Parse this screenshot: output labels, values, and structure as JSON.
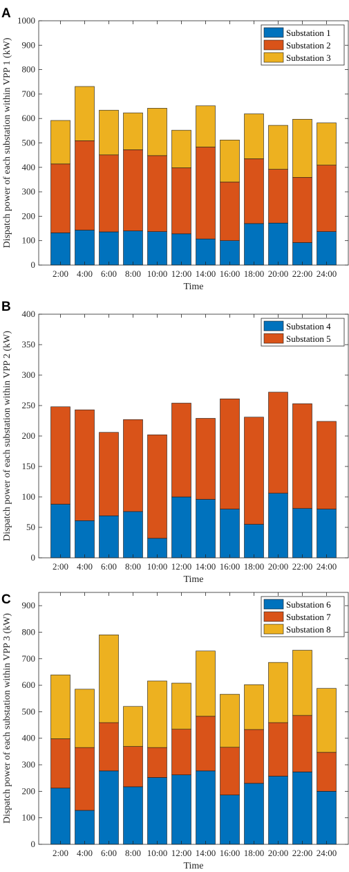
{
  "chart_data": [
    {
      "type": "bar",
      "stacked": true,
      "panel_label": "A",
      "categories": [
        "2:00",
        "4:00",
        "6:00",
        "8:00",
        "10:00",
        "12:00",
        "14:00",
        "16:00",
        "18:00",
        "20:00",
        "22:00",
        "24:00"
      ],
      "series": [
        {
          "name": "Substation 1",
          "color": "#0072BD",
          "values": [
            132,
            143,
            136,
            140,
            137,
            128,
            107,
            100,
            170,
            172,
            92,
            137
          ]
        },
        {
          "name": "Substation 2",
          "color": "#D95319",
          "values": [
            282,
            366,
            315,
            332,
            311,
            270,
            376,
            240,
            265,
            220,
            267,
            272
          ]
        },
        {
          "name": "Substation 3",
          "color": "#EDB120",
          "values": [
            178,
            222,
            183,
            151,
            194,
            154,
            169,
            172,
            184,
            180,
            238,
            173
          ]
        }
      ],
      "xlabel": "Time",
      "ylabel": "Dispatch power of each substation within VPP 1 (kW)",
      "ylim": [
        0,
        1000
      ],
      "yticks": [
        0,
        100,
        200,
        300,
        400,
        500,
        600,
        700,
        800,
        900,
        1000
      ],
      "legend_position": "top-right",
      "grid": false
    },
    {
      "type": "bar",
      "stacked": true,
      "panel_label": "B",
      "categories": [
        "2:00",
        "4:00",
        "6:00",
        "8:00",
        "10:00",
        "12:00",
        "14:00",
        "16:00",
        "18:00",
        "20:00",
        "22:00",
        "24:00"
      ],
      "series": [
        {
          "name": "Substation 4",
          "color": "#0072BD",
          "values": [
            88,
            61,
            69,
            76,
            32,
            100,
            96,
            80,
            55,
            106,
            81,
            80
          ]
        },
        {
          "name": "Substation 5",
          "color": "#D95319",
          "values": [
            160,
            182,
            137,
            151,
            170,
            154,
            133,
            181,
            176,
            166,
            172,
            144
          ]
        }
      ],
      "xlabel": "Time",
      "ylabel": "Dispatch power of each substation within VPP 2 (kW)",
      "ylim": [
        0,
        400
      ],
      "yticks": [
        0,
        50,
        100,
        150,
        200,
        250,
        300,
        350,
        400
      ],
      "legend_position": "top-right",
      "grid": false
    },
    {
      "type": "bar",
      "stacked": true,
      "panel_label": "C",
      "categories": [
        "2:00",
        "4:00",
        "6:00",
        "8:00",
        "10:00",
        "12:00",
        "14:00",
        "16:00",
        "18:00",
        "20:00",
        "22:00",
        "24:00"
      ],
      "series": [
        {
          "name": "Substation 6",
          "color": "#0072BD",
          "values": [
            212,
            128,
            277,
            217,
            252,
            262,
            277,
            186,
            230,
            257,
            273,
            200
          ]
        },
        {
          "name": "Substation 7",
          "color": "#D95319",
          "values": [
            186,
            237,
            182,
            152,
            113,
            172,
            206,
            180,
            203,
            202,
            213,
            147
          ]
        },
        {
          "name": "Substation 8",
          "color": "#EDB120",
          "values": [
            241,
            220,
            331,
            151,
            251,
            174,
            246,
            200,
            169,
            227,
            246,
            241
          ]
        }
      ],
      "xlabel": "Time",
      "ylabel": "Dispatch power of each substation within VPP 3 (kW)",
      "ylim": [
        0,
        950
      ],
      "yticks": [
        0,
        100,
        200,
        300,
        400,
        500,
        600,
        700,
        800,
        900
      ],
      "legend_position": "top-right",
      "grid": false
    }
  ]
}
